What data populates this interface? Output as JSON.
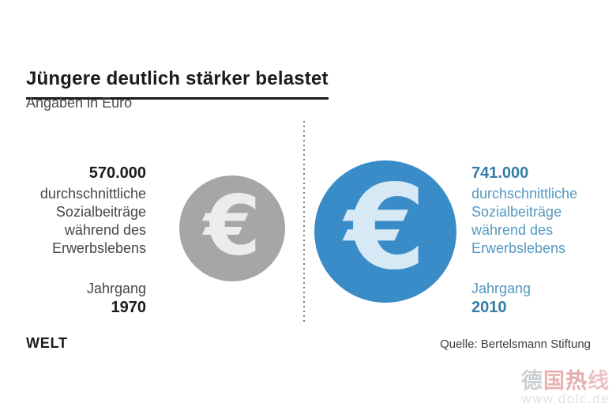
{
  "header": {
    "title": "Jüngere deutlich stärker belastet",
    "subtitle": "Angaben in Euro"
  },
  "comparison": {
    "left": {
      "amount": "570.000",
      "description": "durchschnittliche\nSozialbeiträge\nwährend des\nErwerbslebens",
      "cohort_label": "Jahrgang",
      "cohort_year": "1970",
      "amount_color": "#1b1b1d",
      "text_color": "#464646",
      "circle_color": "#a6a6a6",
      "euro_color": "#ececec",
      "euro_symbol": "€"
    },
    "right": {
      "amount": "741.000",
      "description": "durchschnittliche\nSozialbeiträge\nwährend des\nErwerbslebens",
      "cohort_label": "Jahrgang",
      "cohort_year": "2010",
      "amount_color": "#347da8",
      "text_color": "#5598bf",
      "circle_color": "#3a8cc8",
      "euro_color": "#d8e9f6",
      "euro_symbol": "€"
    }
  },
  "footer": {
    "brand": "WELT",
    "source": "Quelle: Bertelsmann Stiftung"
  },
  "watermark": {
    "chars": [
      "德",
      "国",
      "热",
      "线"
    ],
    "char_colors": [
      "#a9aeb6",
      "#d97f82",
      "#d4777c",
      "#e0989c"
    ],
    "url": "www.dolc.de"
  },
  "chart_data": {
    "type": "bar",
    "variant": "proportional-circle pictogram (euro coins, circle area scaled to value)",
    "title": "Jüngere deutlich stärker belastet",
    "subtitle": "Angaben in Euro",
    "categories": [
      "Jahrgang 1970",
      "Jahrgang 2010"
    ],
    "values": [
      570000,
      741000
    ],
    "value_labels": [
      "570.000",
      "741.000"
    ],
    "series_label": "durchschnittliche Sozialbeiträge während des Erwerbslebens",
    "unit": "Euro",
    "colors": [
      "#a6a6a6",
      "#3a8cc8"
    ],
    "source": "Quelle: Bertelsmann Stiftung",
    "legend_position": "none",
    "grid": false
  }
}
